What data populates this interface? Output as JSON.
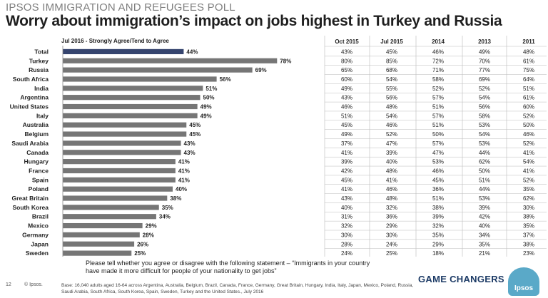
{
  "header": {
    "kicker": "IPSOS IMMIGRATION AND REFUGEES POLL",
    "title": "Worry about immigration’s impact on jobs highest in Turkey and Russia",
    "subhead": "Jul 2016 -  Strongly Agree/Tend to Agree"
  },
  "colors": {
    "highlight": "#35446e",
    "bar": "#767676",
    "grid": "#bbbbbb"
  },
  "chart_data": {
    "type": "bar",
    "orientation": "horizontal",
    "title": "Worry about immigration’s impact on jobs highest in Turkey and Russia",
    "series_name": "Jul 2016 -  Strongly Agree/Tend to Agree",
    "categories": [
      "Total",
      "Turkey",
      "Russia",
      "South Africa",
      "India",
      "Argentina",
      "United States",
      "Italy",
      "Australia",
      "Belgium",
      "Saudi Arabia",
      "Canada",
      "Hungary",
      "France",
      "Spain",
      "Poland",
      "Great Britain",
      "South Korea",
      "Brazil",
      "Mexico",
      "Germany",
      "Japan",
      "Sweden"
    ],
    "values": [
      44,
      78,
      69,
      56,
      51,
      50,
      49,
      49,
      45,
      45,
      43,
      43,
      41,
      41,
      41,
      40,
      38,
      35,
      34,
      29,
      28,
      26,
      25
    ],
    "value_labels": [
      "44%",
      "78%",
      "69%",
      "56%",
      "51%",
      "50%",
      "49%",
      "49%",
      "45%",
      "45%",
      "43%",
      "43%",
      "41%",
      "41%",
      "41%",
      "40%",
      "38%",
      "35%",
      "34%",
      "29%",
      "28%",
      "26%",
      "25%"
    ],
    "highlighted_category": "Total",
    "xlim": [
      0,
      100
    ],
    "grid": false,
    "legend": "none"
  },
  "table": {
    "headers": [
      "Oct 2015",
      "Jul 2015",
      "2014",
      "2013",
      "2011"
    ],
    "rows": [
      [
        "43%",
        "45%",
        "46%",
        "49%",
        "48%"
      ],
      [
        "80%",
        "85%",
        "72%",
        "70%",
        "61%"
      ],
      [
        "65%",
        "68%",
        "71%",
        "77%",
        "75%"
      ],
      [
        "60%",
        "54%",
        "58%",
        "69%",
        "64%"
      ],
      [
        "49%",
        "55%",
        "52%",
        "52%",
        "51%"
      ],
      [
        "43%",
        "56%",
        "57%",
        "54%",
        "61%"
      ],
      [
        "46%",
        "48%",
        "51%",
        "56%",
        "60%"
      ],
      [
        "51%",
        "54%",
        "57%",
        "58%",
        "52%"
      ],
      [
        "45%",
        "46%",
        "51%",
        "53%",
        "50%"
      ],
      [
        "49%",
        "52%",
        "50%",
        "54%",
        "46%"
      ],
      [
        "37%",
        "47%",
        "57%",
        "53%",
        "52%"
      ],
      [
        "41%",
        "39%",
        "47%",
        "44%",
        "41%"
      ],
      [
        "39%",
        "40%",
        "53%",
        "62%",
        "54%"
      ],
      [
        "42%",
        "48%",
        "46%",
        "50%",
        "41%"
      ],
      [
        "45%",
        "41%",
        "45%",
        "51%",
        "52%"
      ],
      [
        "41%",
        "46%",
        "36%",
        "44%",
        "35%"
      ],
      [
        "43%",
        "48%",
        "51%",
        "53%",
        "62%"
      ],
      [
        "40%",
        "32%",
        "38%",
        "39%",
        "30%"
      ],
      [
        "31%",
        "36%",
        "39%",
        "42%",
        "38%"
      ],
      [
        "32%",
        "29%",
        "32%",
        "40%",
        "35%"
      ],
      [
        "30%",
        "30%",
        "35%",
        "34%",
        "37%"
      ],
      [
        "28%",
        "24%",
        "29%",
        "35%",
        "38%"
      ],
      [
        "24%",
        "25%",
        "18%",
        "21%",
        "23%"
      ]
    ]
  },
  "footer": {
    "question": "Please tell whether you agree or disagree with the following statement – “Immigrants in your country have made it more difficult for people of your nationality to get jobs”",
    "page_number": "12",
    "copyright": "© Ipsos.",
    "base": "Base: 16,040 adults aged 16-64 across  Argentina, Australia, Belgium, Brazil, Canada, France, Germany, Great Britain, Hungary, India, Italy, Japan, Mexico, Poland, Russia, Saudi Arabia, South Africa, South Korea, Spain, Sweden, Turkey and the United States., July 2016",
    "brand": "GAME CHANGERS",
    "logo_text": "Ipsos"
  }
}
